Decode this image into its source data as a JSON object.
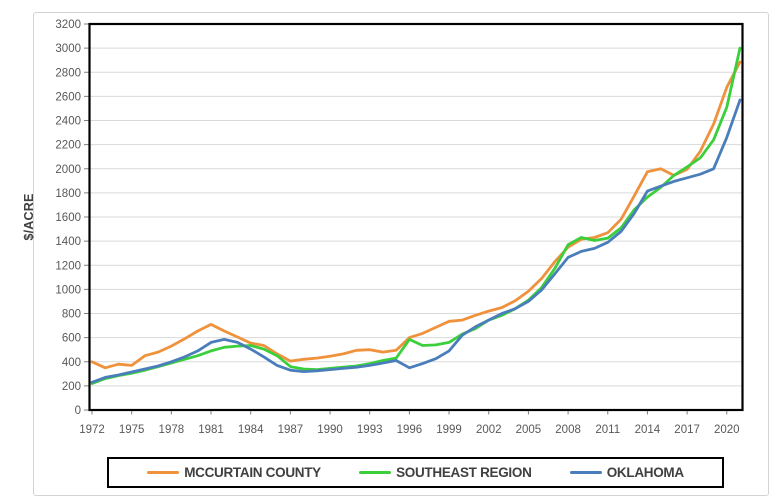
{
  "chart_data": {
    "type": "line",
    "title": "",
    "ylabel": "$/ACRE",
    "xlabel": "",
    "ylim": [
      0,
      3200
    ],
    "ytick_step": 200,
    "grid": true,
    "legend_position": "bottom",
    "axis_text_color": "#595959",
    "ylabel_color": "#404040",
    "grid_color": "#d9d9d9",
    "tick_color": "#7f7f7f",
    "axis_line_color": "#000000",
    "xticks": [
      1972,
      1975,
      1978,
      1981,
      1984,
      1987,
      1990,
      1993,
      1996,
      1999,
      2002,
      2005,
      2008,
      2011,
      2014,
      2017,
      2020
    ],
    "x": [
      1972,
      1973,
      1974,
      1975,
      1976,
      1977,
      1978,
      1979,
      1980,
      1981,
      1982,
      1983,
      1984,
      1985,
      1986,
      1987,
      1988,
      1989,
      1990,
      1991,
      1992,
      1993,
      1994,
      1995,
      1996,
      1997,
      1998,
      1999,
      2000,
      2001,
      2002,
      2003,
      2004,
      2005,
      2006,
      2007,
      2008,
      2009,
      2010,
      2011,
      2012,
      2013,
      2014,
      2015,
      2016,
      2017,
      2018,
      2019,
      2020,
      2021
    ],
    "series": [
      {
        "name": "MCCURTAIN COUNTY",
        "color": "#f0913c",
        "values": [
          400,
          350,
          380,
          370,
          450,
          480,
          530,
          590,
          655,
          710,
          655,
          605,
          555,
          535,
          465,
          405,
          420,
          430,
          445,
          465,
          495,
          500,
          480,
          495,
          600,
          635,
          685,
          735,
          745,
          785,
          820,
          850,
          905,
          985,
          1090,
          1230,
          1350,
          1415,
          1430,
          1470,
          1580,
          1775,
          1975,
          2000,
          1945,
          1995,
          2145,
          2370,
          2675,
          2885
        ]
      },
      {
        "name": "SOUTHEAST REGION",
        "color": "#3ccf3c",
        "values": [
          220,
          260,
          285,
          305,
          330,
          360,
          390,
          420,
          450,
          490,
          520,
          530,
          535,
          505,
          450,
          360,
          340,
          335,
          345,
          355,
          365,
          385,
          410,
          430,
          585,
          535,
          540,
          560,
          630,
          675,
          745,
          785,
          840,
          910,
          1015,
          1175,
          1370,
          1430,
          1405,
          1425,
          1510,
          1660,
          1765,
          1845,
          1945,
          2015,
          2090,
          2240,
          2510,
          3000
        ]
      },
      {
        "name": "OKLAHOMA",
        "color": "#4a7ebb",
        "values": [
          230,
          270,
          290,
          315,
          340,
          365,
          400,
          440,
          490,
          560,
          585,
          560,
          505,
          440,
          370,
          330,
          318,
          325,
          335,
          345,
          355,
          370,
          390,
          410,
          350,
          385,
          425,
          490,
          620,
          690,
          745,
          800,
          840,
          900,
          995,
          1130,
          1265,
          1315,
          1340,
          1390,
          1480,
          1630,
          1815,
          1855,
          1895,
          1925,
          1955,
          2000,
          2260,
          2570
        ]
      }
    ]
  }
}
